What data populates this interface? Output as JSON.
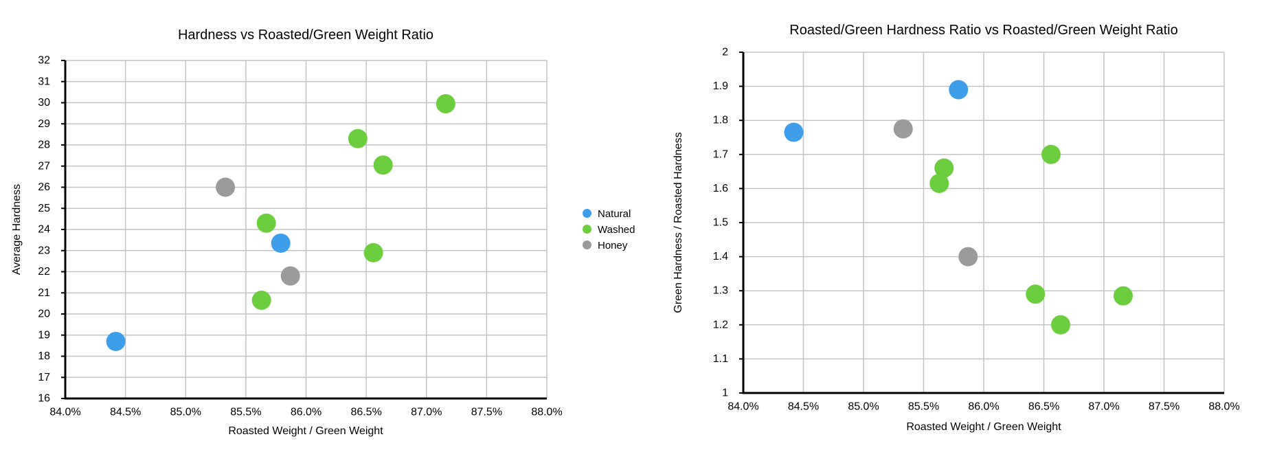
{
  "colors": {
    "natural": "#3F9EEA",
    "washed": "#6CCE3F",
    "honey": "#9B9B9B",
    "grid": "#C4C4C4",
    "axis": "#000000",
    "background": "#FFFFFF",
    "text": "#000000"
  },
  "legend": {
    "items": [
      {
        "label": "Natural",
        "color": "#3F9EEA"
      },
      {
        "label": "Washed",
        "color": "#6CCE3F"
      },
      {
        "label": "Honey",
        "color": "#9B9B9B"
      }
    ]
  },
  "chart_data": [
    {
      "type": "scatter",
      "title": "Hardness vs Roasted/Green Weight Ratio",
      "xlabel": "Roasted Weight / Green Weight",
      "ylabel": "Average Hardness",
      "xlim": [
        84.0,
        88.0
      ],
      "ylim": [
        16,
        32
      ],
      "grid": true,
      "legend_position": "right",
      "x_ticks": [
        {
          "v": 84.0,
          "label": "84.0%"
        },
        {
          "v": 84.5,
          "label": "84.5%"
        },
        {
          "v": 85.0,
          "label": "85.0%"
        },
        {
          "v": 85.5,
          "label": "85.5%"
        },
        {
          "v": 86.0,
          "label": "86.0%"
        },
        {
          "v": 86.5,
          "label": "86.5%"
        },
        {
          "v": 87.0,
          "label": "87.0%"
        },
        {
          "v": 87.5,
          "label": "87.5%"
        },
        {
          "v": 88.0,
          "label": "88.0%"
        }
      ],
      "y_ticks": [
        {
          "v": 16,
          "label": "16"
        },
        {
          "v": 17,
          "label": "17"
        },
        {
          "v": 18,
          "label": "18"
        },
        {
          "v": 19,
          "label": "19"
        },
        {
          "v": 20,
          "label": "20"
        },
        {
          "v": 21,
          "label": "21"
        },
        {
          "v": 22,
          "label": "22"
        },
        {
          "v": 23,
          "label": "23"
        },
        {
          "v": 24,
          "label": "24"
        },
        {
          "v": 25,
          "label": "25"
        },
        {
          "v": 26,
          "label": "26"
        },
        {
          "v": 27,
          "label": "27"
        },
        {
          "v": 28,
          "label": "28"
        },
        {
          "v": 29,
          "label": "29"
        },
        {
          "v": 30,
          "label": "30"
        },
        {
          "v": 31,
          "label": "31"
        },
        {
          "v": 32,
          "label": "32"
        }
      ],
      "series": [
        {
          "name": "Natural",
          "color": "#3F9EEA",
          "points": [
            {
              "x": 84.42,
              "y": 18.7
            },
            {
              "x": 85.79,
              "y": 23.35
            }
          ]
        },
        {
          "name": "Washed",
          "color": "#6CCE3F",
          "points": [
            {
              "x": 85.63,
              "y": 20.65
            },
            {
              "x": 85.67,
              "y": 24.3
            },
            {
              "x": 86.43,
              "y": 28.3
            },
            {
              "x": 86.56,
              "y": 22.9
            },
            {
              "x": 86.64,
              "y": 27.05
            },
            {
              "x": 87.16,
              "y": 29.95
            }
          ]
        },
        {
          "name": "Honey",
          "color": "#9B9B9B",
          "points": [
            {
              "x": 85.33,
              "y": 26.0
            },
            {
              "x": 85.87,
              "y": 21.8
            }
          ]
        }
      ]
    },
    {
      "type": "scatter",
      "title": "Roasted/Green Hardness Ratio vs Roasted/Green Weight Ratio",
      "xlabel": "Roasted Weight / Green Weight",
      "ylabel": "Green Hardness / Roasted Hardness",
      "xlim": [
        84.0,
        88.0
      ],
      "ylim": [
        1,
        2
      ],
      "grid": true,
      "legend_position": "none",
      "x_ticks": [
        {
          "v": 84.0,
          "label": "84.0%"
        },
        {
          "v": 84.5,
          "label": "84.5%"
        },
        {
          "v": 85.0,
          "label": "85.0%"
        },
        {
          "v": 85.5,
          "label": "85.5%"
        },
        {
          "v": 86.0,
          "label": "86.0%"
        },
        {
          "v": 86.5,
          "label": "86.5%"
        },
        {
          "v": 87.0,
          "label": "87.0%"
        },
        {
          "v": 87.5,
          "label": "87.5%"
        },
        {
          "v": 88.0,
          "label": "88.0%"
        }
      ],
      "y_ticks": [
        {
          "v": 1.0,
          "label": "1"
        },
        {
          "v": 1.1,
          "label": "1.1"
        },
        {
          "v": 1.2,
          "label": "1.2"
        },
        {
          "v": 1.3,
          "label": "1.3"
        },
        {
          "v": 1.4,
          "label": "1.4"
        },
        {
          "v": 1.5,
          "label": "1.5"
        },
        {
          "v": 1.6,
          "label": "1.6"
        },
        {
          "v": 1.7,
          "label": "1.7"
        },
        {
          "v": 1.8,
          "label": "1.8"
        },
        {
          "v": 1.9,
          "label": "1.9"
        },
        {
          "v": 2.0,
          "label": "2"
        }
      ],
      "series": [
        {
          "name": "Natural",
          "color": "#3F9EEA",
          "points": [
            {
              "x": 84.42,
              "y": 1.765
            },
            {
              "x": 85.79,
              "y": 1.89
            }
          ]
        },
        {
          "name": "Washed",
          "color": "#6CCE3F",
          "points": [
            {
              "x": 85.63,
              "y": 1.615
            },
            {
              "x": 85.67,
              "y": 1.66
            },
            {
              "x": 86.43,
              "y": 1.29
            },
            {
              "x": 86.56,
              "y": 1.7
            },
            {
              "x": 86.64,
              "y": 1.2
            },
            {
              "x": 87.16,
              "y": 1.285
            }
          ]
        },
        {
          "name": "Honey",
          "color": "#9B9B9B",
          "points": [
            {
              "x": 85.33,
              "y": 1.775
            },
            {
              "x": 85.87,
              "y": 1.4
            }
          ]
        }
      ]
    }
  ]
}
